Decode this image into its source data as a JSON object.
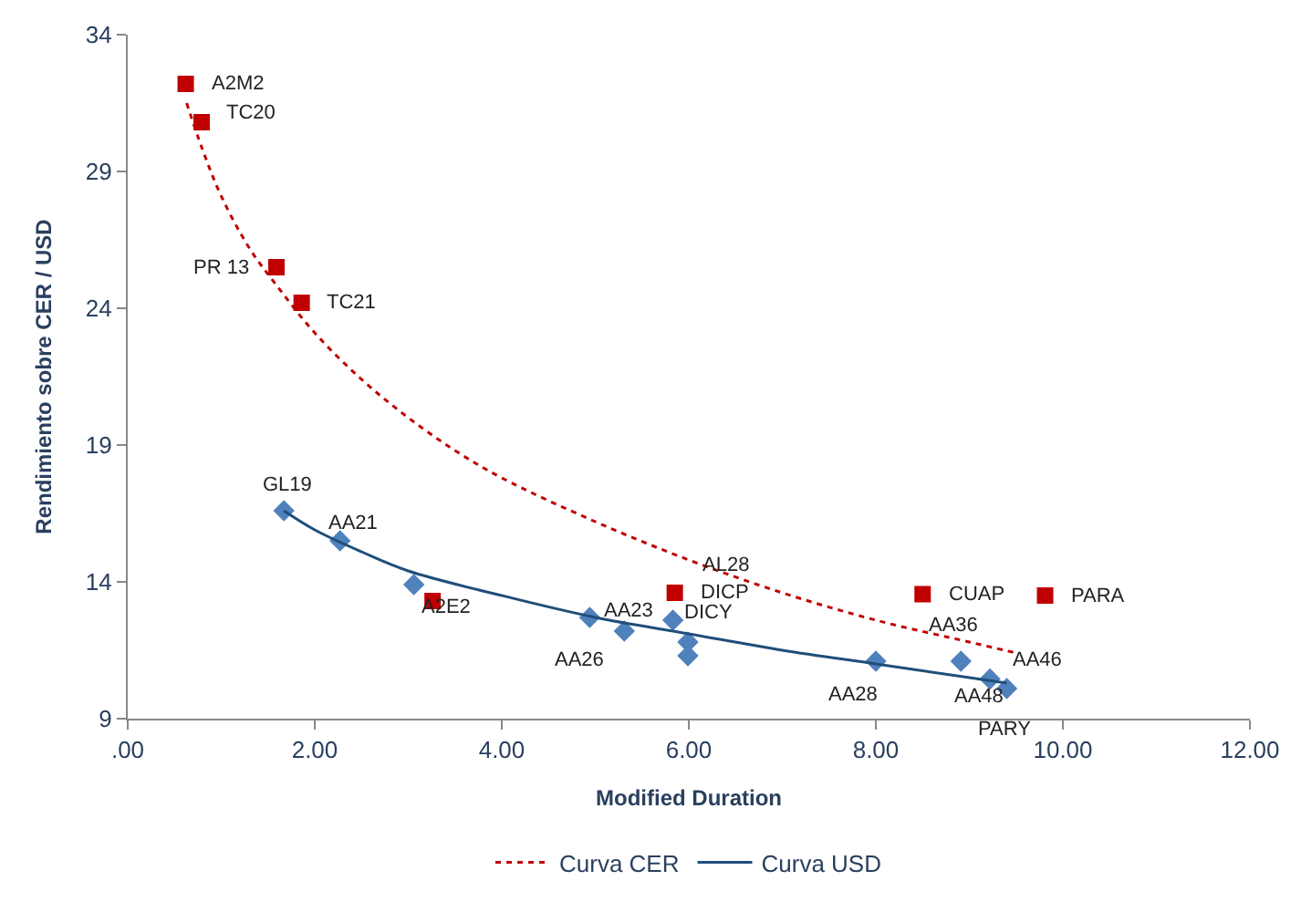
{
  "chart_data": {
    "type": "scatter",
    "xlabel": "Modified Duration",
    "ylabel": "Rendimiento sobre CER / USD",
    "xlim": [
      0,
      12
    ],
    "xticks": [
      {
        "value": 0,
        "label": ".00"
      },
      {
        "value": 2,
        "label": "2.00"
      },
      {
        "value": 4,
        "label": "4.00"
      },
      {
        "value": 6,
        "label": "6.00"
      },
      {
        "value": 8,
        "label": "8.00"
      },
      {
        "value": 10,
        "label": "10.00"
      },
      {
        "value": 12,
        "label": "12.00"
      }
    ],
    "ylim": [
      9,
      34
    ],
    "yticks": [
      9,
      14,
      19,
      24,
      29,
      34
    ],
    "grid": false,
    "legend": "bottom",
    "series": [
      {
        "marker": "square",
        "color": "#c00000",
        "x": [
          0.62,
          0.79,
          1.59,
          1.86,
          3.26,
          5.85,
          8.5,
          9.81
        ],
        "values": [
          32.2,
          30.8,
          25.5,
          24.2,
          13.3,
          13.6,
          13.55,
          13.5
        ]
      },
      {
        "marker": "diamond",
        "color": "#4f81bd",
        "x": [
          1.67,
          2.27,
          3.06,
          4.94,
          5.31,
          5.83,
          5.99,
          5.99,
          8.0,
          8.91,
          9.22,
          9.4
        ],
        "values": [
          16.6,
          15.5,
          13.9,
          12.7,
          12.2,
          12.6,
          11.8,
          11.3,
          11.1,
          11.1,
          10.45,
          10.1
        ]
      },
      {
        "type": "line",
        "name": "Curva CER",
        "color": "#c00000",
        "line_style": "dotted",
        "x": [
          0.63,
          0.8,
          1.0,
          1.3,
          1.6,
          2.0,
          2.5,
          3.0,
          3.5,
          4.0,
          5.0,
          6.0,
          7.0,
          8.0,
          9.0,
          9.5
        ],
        "values": [
          31.5,
          29.8,
          28.1,
          26.2,
          24.8,
          23.1,
          21.4,
          20.0,
          18.8,
          17.8,
          16.2,
          14.8,
          13.6,
          12.6,
          11.8,
          11.4
        ]
      },
      {
        "type": "line",
        "name": "Curva USD",
        "color": "#1f4e79",
        "line_style": "solid",
        "x": [
          1.67,
          2.0,
          2.5,
          3.0,
          4.0,
          5.0,
          6.0,
          7.0,
          8.0,
          9.0,
          9.4
        ],
        "values": [
          16.6,
          15.9,
          15.1,
          14.4,
          13.5,
          12.7,
          12.1,
          11.5,
          11.0,
          10.5,
          10.3
        ]
      }
    ],
    "annotations": [
      {
        "text": "A2M2",
        "x": 0.62,
        "y": 32.2
      },
      {
        "text": "TC20",
        "x": 0.79,
        "y": 30.8
      },
      {
        "text": "PR 13",
        "x": 1.59,
        "y": 25.5
      },
      {
        "text": "TC21",
        "x": 1.86,
        "y": 24.2
      },
      {
        "text": "A2E2",
        "x": 3.26,
        "y": 13.3
      },
      {
        "text": "DICP",
        "x": 5.85,
        "y": 13.6
      },
      {
        "text": "CUAP",
        "x": 8.5,
        "y": 13.55
      },
      {
        "text": "PARA",
        "x": 9.81,
        "y": 13.5
      },
      {
        "text": "GL19",
        "x": 1.67,
        "y": 16.6
      },
      {
        "text": "AA21",
        "x": 2.27,
        "y": 15.5
      },
      {
        "text": "AA23",
        "x": 4.94,
        "y": 12.7
      },
      {
        "text": "AA26",
        "x": 5.31,
        "y": 12.2
      },
      {
        "text": "AL28",
        "x": 5.83,
        "y": 12.6
      },
      {
        "text": "DICY",
        "x": 5.99,
        "y": 11.8
      },
      {
        "text": "AA28",
        "x": 8.0,
        "y": 11.1
      },
      {
        "text": "AA36",
        "x": 8.91,
        "y": 11.1
      },
      {
        "text": "AA46",
        "x": 9.22,
        "y": 10.45
      },
      {
        "text": "AA48",
        "x": 9.22,
        "y": 10.45
      },
      {
        "text": "PARY",
        "x": 9.4,
        "y": 10.1
      }
    ]
  }
}
